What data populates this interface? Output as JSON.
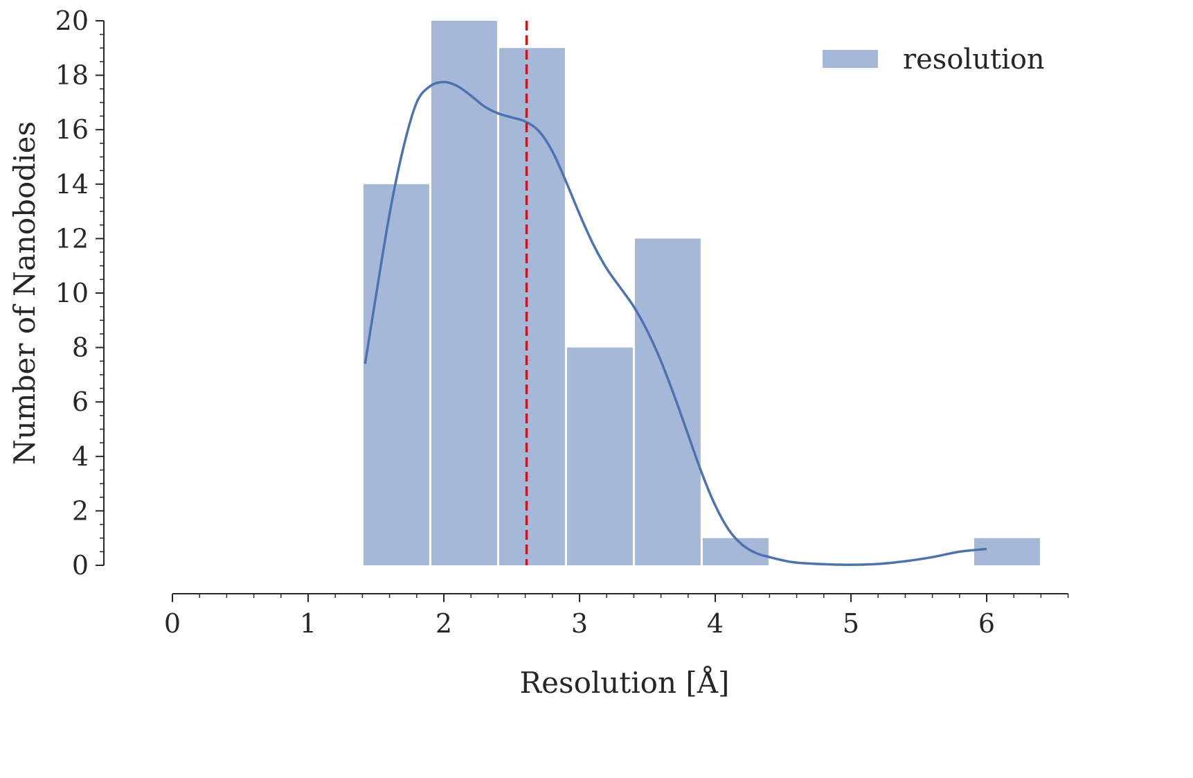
{
  "chart_data": {
    "type": "histogram",
    "xlabel": "Resolution [Å]",
    "ylabel": "Number of Nanobodies",
    "xlim": [
      0,
      6.6
    ],
    "ylim": [
      0,
      20
    ],
    "x_ticks": [
      "0",
      "1",
      "2",
      "3",
      "4",
      "5",
      "6"
    ],
    "y_ticks": [
      "0",
      "2",
      "4",
      "6",
      "8",
      "10",
      "12",
      "14",
      "16",
      "18",
      "20"
    ],
    "bins": [
      {
        "start": 1.4,
        "end": 1.9,
        "count": 14
      },
      {
        "start": 1.9,
        "end": 2.4,
        "count": 20
      },
      {
        "start": 2.4,
        "end": 2.9,
        "count": 19
      },
      {
        "start": 2.9,
        "end": 3.4,
        "count": 8
      },
      {
        "start": 3.4,
        "end": 3.9,
        "count": 12
      },
      {
        "start": 3.9,
        "end": 4.4,
        "count": 1
      },
      {
        "start": 4.4,
        "end": 4.9,
        "count": 0
      },
      {
        "start": 4.9,
        "end": 5.4,
        "count": 0
      },
      {
        "start": 5.4,
        "end": 5.9,
        "count": 0
      },
      {
        "start": 5.9,
        "end": 6.4,
        "count": 1
      }
    ],
    "kde": [
      [
        1.42,
        7.4
      ],
      [
        1.5,
        9.9
      ],
      [
        1.6,
        12.9
      ],
      [
        1.7,
        15.3
      ],
      [
        1.8,
        17.0
      ],
      [
        1.9,
        17.6
      ],
      [
        2.0,
        17.75
      ],
      [
        2.1,
        17.6
      ],
      [
        2.2,
        17.25
      ],
      [
        2.3,
        16.85
      ],
      [
        2.4,
        16.6
      ],
      [
        2.5,
        16.45
      ],
      [
        2.6,
        16.3
      ],
      [
        2.7,
        15.95
      ],
      [
        2.8,
        15.2
      ],
      [
        2.9,
        14.1
      ],
      [
        3.0,
        12.9
      ],
      [
        3.1,
        11.8
      ],
      [
        3.2,
        10.9
      ],
      [
        3.3,
        10.2
      ],
      [
        3.4,
        9.5
      ],
      [
        3.5,
        8.6
      ],
      [
        3.6,
        7.5
      ],
      [
        3.7,
        6.2
      ],
      [
        3.8,
        4.8
      ],
      [
        3.9,
        3.4
      ],
      [
        4.0,
        2.2
      ],
      [
        4.1,
        1.3
      ],
      [
        4.2,
        0.75
      ],
      [
        4.3,
        0.45
      ],
      [
        4.4,
        0.3
      ],
      [
        4.5,
        0.18
      ],
      [
        4.6,
        0.1
      ],
      [
        4.8,
        0.04
      ],
      [
        5.0,
        0.02
      ],
      [
        5.2,
        0.05
      ],
      [
        5.4,
        0.15
      ],
      [
        5.6,
        0.3
      ],
      [
        5.8,
        0.5
      ],
      [
        6.0,
        0.6
      ]
    ],
    "mean_line": 2.61,
    "legend": {
      "label": "resolution",
      "placement": "top-right"
    },
    "grid": false,
    "colors": {
      "bar": "#a6b8d8",
      "kde": "#4c72b0",
      "mean_line": "#ff0000",
      "text": "#262626"
    }
  }
}
